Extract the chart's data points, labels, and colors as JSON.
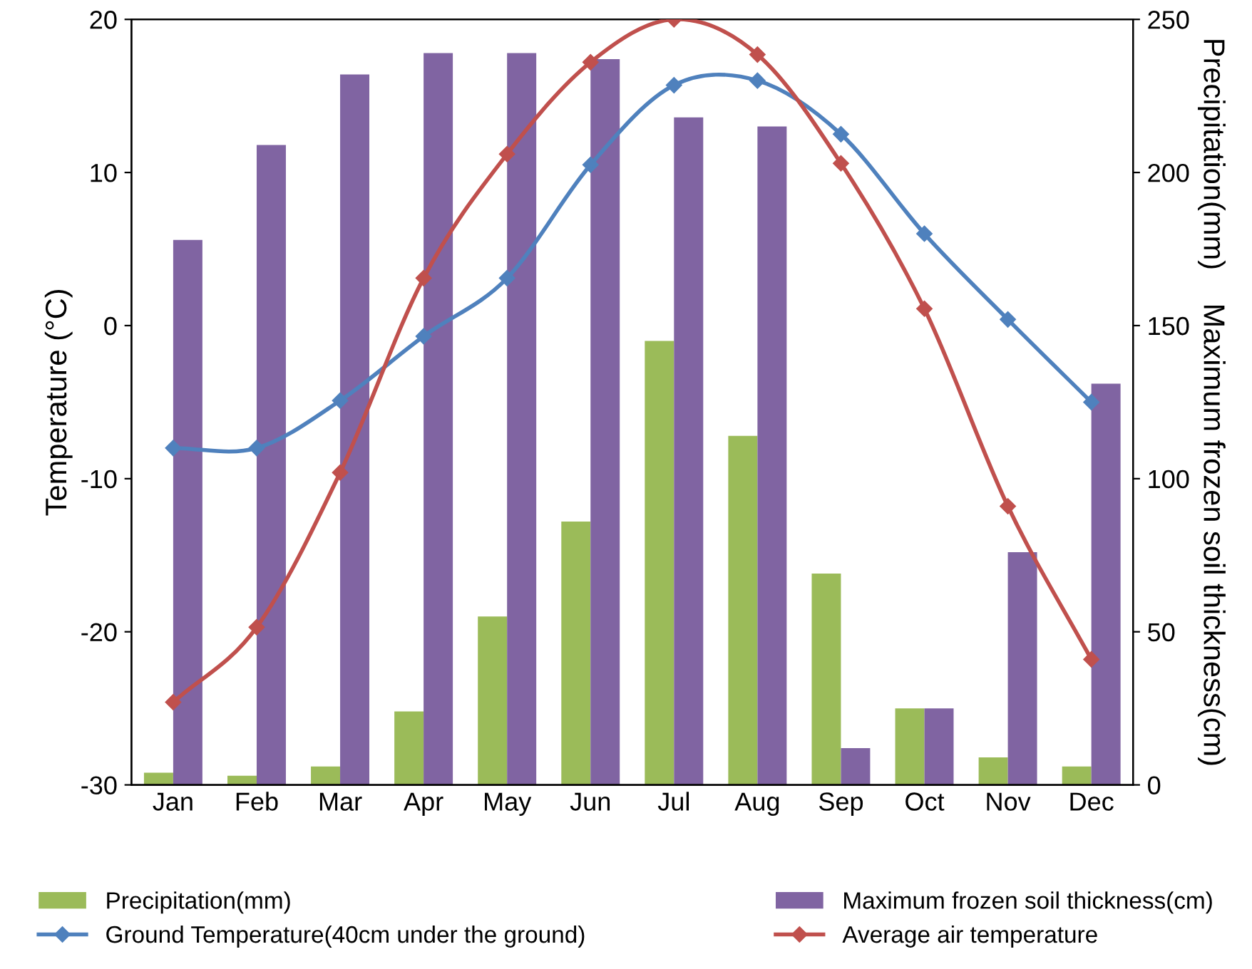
{
  "chart_data": {
    "type": "bar",
    "ylabel": "Temperature (°C)",
    "y2label": "Precipitation(mm)    Maximum frozen soil thickness(cm)",
    "categories": [
      "Jan",
      "Feb",
      "Mar",
      "Apr",
      "May",
      "Jun",
      "Jul",
      "Aug",
      "Sep",
      "Oct",
      "Nov",
      "Dec"
    ],
    "series": [
      {
        "name": "Precipitation(mm)",
        "axis": "y2",
        "color": "#9bbb59",
        "values": [
          4,
          3,
          6,
          24,
          55,
          86,
          145,
          114,
          69,
          25,
          9,
          6
        ]
      },
      {
        "name": "Maximum frozen soil thickness(cm)",
        "axis": "y2",
        "color": "#8064a2",
        "values": [
          178,
          209,
          232,
          239,
          239,
          237,
          218,
          215,
          12,
          25,
          76,
          131
        ]
      },
      {
        "name": "Ground Temperature(40cm under the ground)",
        "type": "line",
        "color": "#4f81bd",
        "values": [
          -8.0,
          -8.0,
          -4.9,
          -0.7,
          3.1,
          10.5,
          15.7,
          16.0,
          12.5,
          6.0,
          0.4,
          -5.0
        ]
      },
      {
        "name": "Average air temperature",
        "type": "line",
        "color": "#c0504d",
        "values": [
          -24.6,
          -19.7,
          -9.6,
          3.1,
          11.2,
          17.2,
          20.0,
          17.7,
          10.6,
          1.1,
          -11.8,
          -21.8
        ]
      }
    ],
    "ylim": [
      -30,
      20
    ],
    "yticks": [
      -30,
      -20,
      -10,
      0,
      10,
      20
    ],
    "y2lim": [
      0,
      250
    ],
    "y2ticks": [
      0,
      50,
      100,
      150,
      200,
      250
    ],
    "marker": "diamond",
    "legend": "bottom",
    "grid": false
  }
}
